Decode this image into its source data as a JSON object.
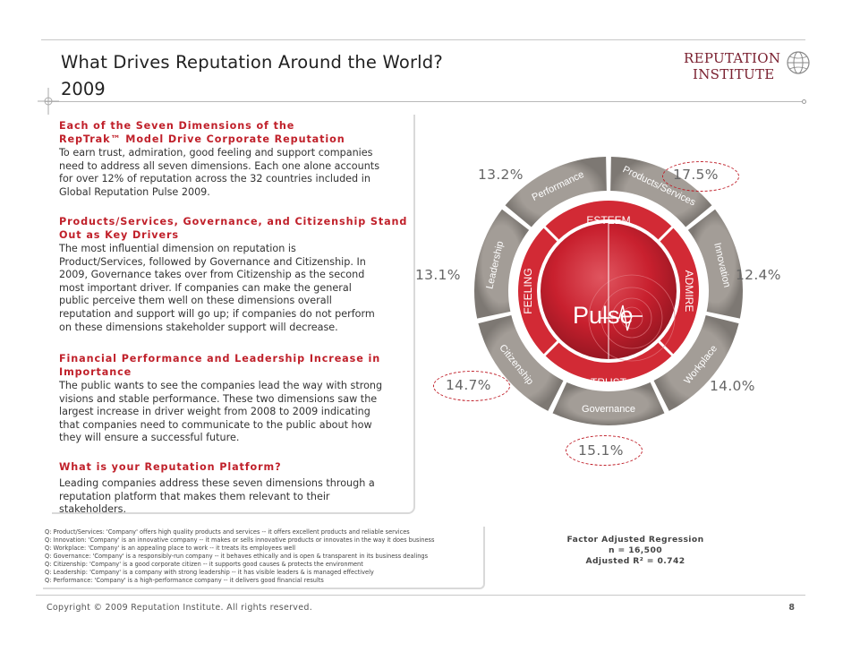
{
  "header": {
    "title": "What Drives Reputation Around the World?",
    "subtitle": "2009"
  },
  "logo": {
    "line1": "REPUTATION",
    "line2": "INSTITUTE"
  },
  "sections": [
    {
      "heading": [
        "Each of the Seven Dimensions of the",
        "RepTrak™ Model Drive Corporate Reputation"
      ],
      "body": [
        "To earn trust, admiration, good feeling and support companies",
        "need to address all seven dimensions. Each one alone accounts",
        "for over 12% of reputation across the 32 countries included in",
        "Global Reputation Pulse 2009."
      ]
    },
    {
      "heading": [
        "Products/Services, Governance, and Citizenship Stand",
        "Out as Key Drivers"
      ],
      "body": [
        "The most influential dimension on reputation is",
        "Product/Services, followed by Governance and Citizenship. In",
        "2009, Governance takes over from Citizenship as the second",
        "most important driver. If companies can make the general",
        "public perceive them well on these dimensions overall",
        "reputation and support will go up; if companies do not perform",
        "on these dimensions stakeholder support will decrease."
      ]
    },
    {
      "heading": [
        "Financial Performance and Leadership Increase in",
        "Importance"
      ],
      "body": [
        "The public wants to see the companies lead the way with strong",
        "visions and stable performance. These two dimensions saw the",
        "largest increase in driver weight from 2008 to 2009 indicating",
        "that companies need to communicate to the public about how",
        "they will ensure a successful future."
      ]
    },
    {
      "heading": [
        "What is your Reputation Platform?"
      ],
      "body": [
        "Leading companies address these seven dimensions through a",
        "reputation platform that makes them relevant to their",
        "stakeholders."
      ]
    }
  ],
  "wheel": {
    "center_label": "Pulse",
    "inner_labels": {
      "top": "ESTEEM",
      "left": "FEELING",
      "right": "ADMIRE",
      "bottom": "TRUST"
    },
    "dimensions": [
      {
        "label": "Performance",
        "pct": "13.2%"
      },
      {
        "label": "Products/Services",
        "pct": "17.5%"
      },
      {
        "label": "Innovation",
        "pct": "12.4%"
      },
      {
        "label": "Workplace",
        "pct": "14.0%"
      },
      {
        "label": "Governance",
        "pct": "15.1%"
      },
      {
        "label": "Citizenship",
        "pct": "14.7%"
      },
      {
        "label": "Leadership",
        "pct": "13.1%"
      }
    ],
    "colors": {
      "accent": "#c0202a",
      "ring": "#8f8a85",
      "core": "#c8202e"
    }
  },
  "notes": [
    "Q: Product/Services: 'Company' offers high quality products and services -- it offers excellent products and reliable services",
    "Q: Innovation: 'Company'  is an innovative company -- it makes or sells innovative products or innovates in the way it does business",
    "Q: Workplace: 'Company'  is an appealing place to work -- it treats its employees well",
    "Q: Governance: 'Company'  is a responsibly-run company -- it behaves ethically and is open & transparent in its business dealings",
    "Q: Citizenship: 'Company'  is a good corporate citizen -- it supports good causes & protects the environment",
    "Q: Leadership: 'Company'  is a company with strong leadership -- it has visible leaders & is managed effectively",
    "Q: Performance: 'Company'  is a high-performance company -- it delivers good financial results"
  ],
  "regression": {
    "title": "Factor Adjusted Regression",
    "n": "n = 16,500",
    "r2": "Adjusted R² = 0.742"
  },
  "footer": {
    "copyright": "Copyright © 2009 Reputation Institute. All rights reserved.",
    "page": "8"
  }
}
